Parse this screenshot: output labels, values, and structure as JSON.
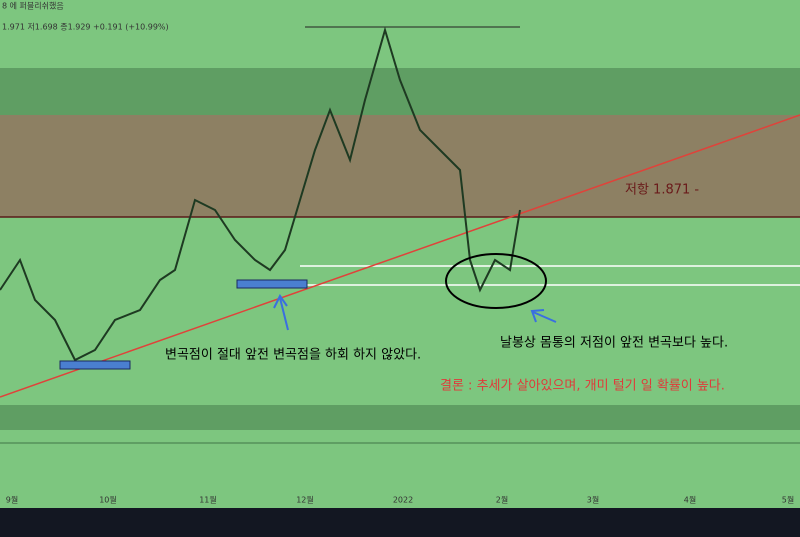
{
  "header": {
    "publisher": "8 에 퍼블리쉬했음",
    "quote": "1.971  저1.698  종1.929  +0.191 (+10.99%)"
  },
  "annotations": {
    "resistance": "저항 1.871 -",
    "left_note": "변곡점이 절대 앞전 변곡점을 하회 하지 않았다.",
    "right_note": "날봉상 몸통의 저점이 앞전 변곡보다 높다.",
    "conclusion": "결론 : 추세가 살아있으며, 개미 털기 일 확률이 높다."
  },
  "x_axis": [
    "9월",
    "10월",
    "11월",
    "12월",
    "2022",
    "2월",
    "3월",
    "4월",
    "5월"
  ]
}
